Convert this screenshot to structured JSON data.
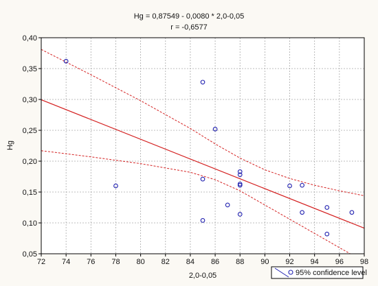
{
  "chart_data": {
    "type": "scatter",
    "title": "Hg = 0,87549 - 0,0080 * 2,0-0,05",
    "subtitle": "r = -0,6577",
    "xlabel": "2,0-0,05",
    "ylabel": "Hg",
    "xlim": [
      72,
      98
    ],
    "ylim": [
      0.05,
      0.4
    ],
    "x_ticks": [
      72,
      74,
      76,
      78,
      80,
      82,
      84,
      86,
      88,
      90,
      92,
      94,
      96,
      98
    ],
    "x_tick_labels": [
      "72",
      "74",
      "76",
      "78",
      "80",
      "82",
      "84",
      "86",
      "88",
      "90",
      "92",
      "94",
      "96",
      "98"
    ],
    "y_ticks": [
      0.05,
      0.1,
      0.15,
      0.2,
      0.25,
      0.3,
      0.35,
      0.4
    ],
    "y_tick_labels": [
      "0,05",
      "0,10",
      "0,15",
      "0,20",
      "0,25",
      "0,30",
      "0,35",
      "0,40"
    ],
    "grid": true,
    "legend": {
      "position": "bottom-right",
      "label": "95% confidence level"
    },
    "points": [
      {
        "x": 74,
        "y": 0.362
      },
      {
        "x": 78,
        "y": 0.16
      },
      {
        "x": 85,
        "y": 0.328
      },
      {
        "x": 85,
        "y": 0.171
      },
      {
        "x": 85,
        "y": 0.104
      },
      {
        "x": 86,
        "y": 0.252
      },
      {
        "x": 87,
        "y": 0.129
      },
      {
        "x": 88,
        "y": 0.183
      },
      {
        "x": 88,
        "y": 0.178
      },
      {
        "x": 88,
        "y": 0.163
      },
      {
        "x": 88,
        "y": 0.161
      },
      {
        "x": 88,
        "y": 0.114
      },
      {
        "x": 92,
        "y": 0.16
      },
      {
        "x": 93,
        "y": 0.161
      },
      {
        "x": 93,
        "y": 0.117
      },
      {
        "x": 95,
        "y": 0.125
      },
      {
        "x": 95,
        "y": 0.082
      },
      {
        "x": 97,
        "y": 0.117
      }
    ],
    "regression": {
      "intercept": 0.87549,
      "slope": -0.008
    },
    "confidence_upper": [
      {
        "x": 72,
        "y": 0.381
      },
      {
        "x": 76,
        "y": 0.34
      },
      {
        "x": 80,
        "y": 0.298
      },
      {
        "x": 84,
        "y": 0.253
      },
      {
        "x": 86,
        "y": 0.228
      },
      {
        "x": 88,
        "y": 0.205
      },
      {
        "x": 90,
        "y": 0.186
      },
      {
        "x": 92,
        "y": 0.172
      },
      {
        "x": 94,
        "y": 0.161
      },
      {
        "x": 96,
        "y": 0.152
      },
      {
        "x": 98,
        "y": 0.144
      }
    ],
    "confidence_lower": [
      {
        "x": 72,
        "y": 0.217
      },
      {
        "x": 76,
        "y": 0.207
      },
      {
        "x": 80,
        "y": 0.196
      },
      {
        "x": 84,
        "y": 0.182
      },
      {
        "x": 86,
        "y": 0.17
      },
      {
        "x": 88,
        "y": 0.152
      },
      {
        "x": 90,
        "y": 0.129
      },
      {
        "x": 92,
        "y": 0.106
      },
      {
        "x": 94,
        "y": 0.083
      },
      {
        "x": 96,
        "y": 0.06
      },
      {
        "x": 98,
        "y": 0.037
      }
    ],
    "colors": {
      "points": "#2020b0",
      "fit": "#d42020",
      "grid": "#a8a8a8",
      "plot_bg": "#ffffff",
      "page_bg": "#fbf9f4"
    }
  }
}
